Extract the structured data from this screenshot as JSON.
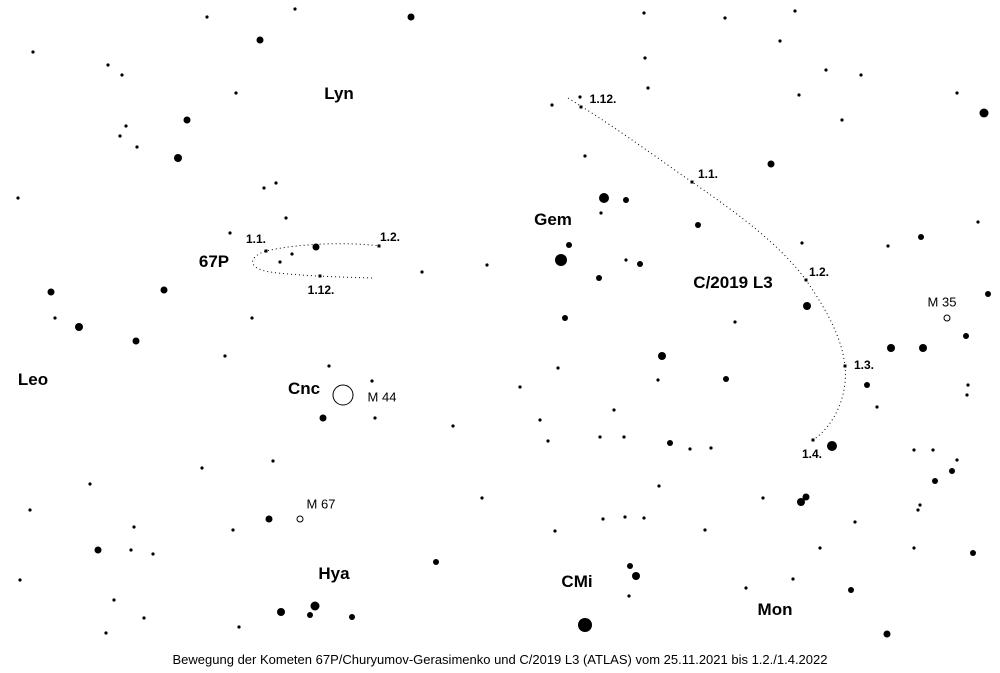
{
  "constellations": {
    "lyn": "Lyn",
    "gem": "Gem",
    "leo": "Leo",
    "cnc": "Cnc",
    "hya": "Hya",
    "cmi": "CMi",
    "mon": "Mon"
  },
  "comets": {
    "c67p": {
      "name": "67P",
      "dates": [
        "1.12.",
        "1.1.",
        "1.2."
      ]
    },
    "c2019l3": {
      "name": "C/2019 L3",
      "dates": [
        "1.12.",
        "1.1.",
        "1.2.",
        "1.3.",
        "1.4."
      ]
    }
  },
  "deep_sky": {
    "m44": "M 44",
    "m67": "M 67",
    "m35": "M 35"
  },
  "caption": "Bewegung der Kometen 67P/Churyumov-Gerasimenko und C/2019 L3 (ATLAS) vom 25.11.2021 bis 1.2./1.4.2022",
  "colors": {
    "background": "#ffffff",
    "stars": "#000000"
  }
}
